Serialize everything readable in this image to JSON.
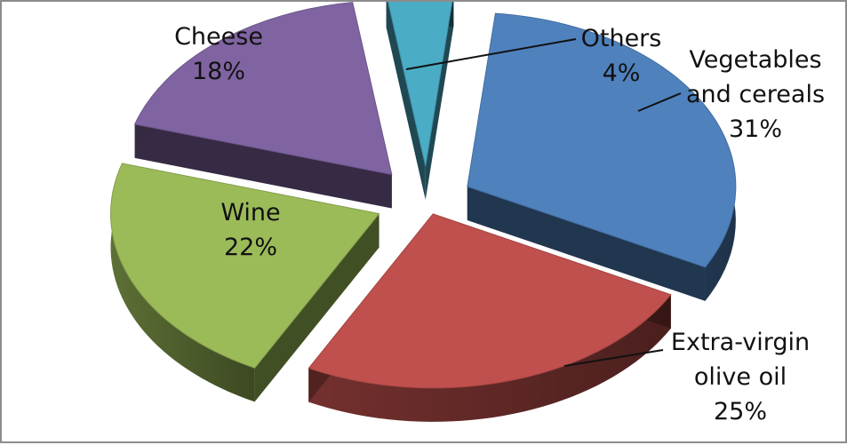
{
  "chart_data": {
    "type": "pie",
    "title": "",
    "style": "3d-exploded",
    "slices": [
      {
        "label": "Vegetables and cereals",
        "label_lines": [
          "Vegetables",
          "and cereals"
        ],
        "value": 31,
        "value_label": "31%",
        "color": "#4f81bd"
      },
      {
        "label": "Extra-virgin olive oil",
        "label_lines": [
          "Extra-virgin",
          "olive oil"
        ],
        "value": 25,
        "value_label": "25%",
        "color": "#c0504d"
      },
      {
        "label": "Wine",
        "label_lines": [
          "Wine"
        ],
        "value": 22,
        "value_label": "22%",
        "color": "#9bbb59"
      },
      {
        "label": "Cheese",
        "label_lines": [
          "Cheese"
        ],
        "value": 18,
        "value_label": "18%",
        "color": "#8064a2"
      },
      {
        "label": "Others",
        "label_lines": [
          "Others"
        ],
        "value": 4,
        "value_label": "4%",
        "color": "#4bacc6"
      }
    ]
  }
}
